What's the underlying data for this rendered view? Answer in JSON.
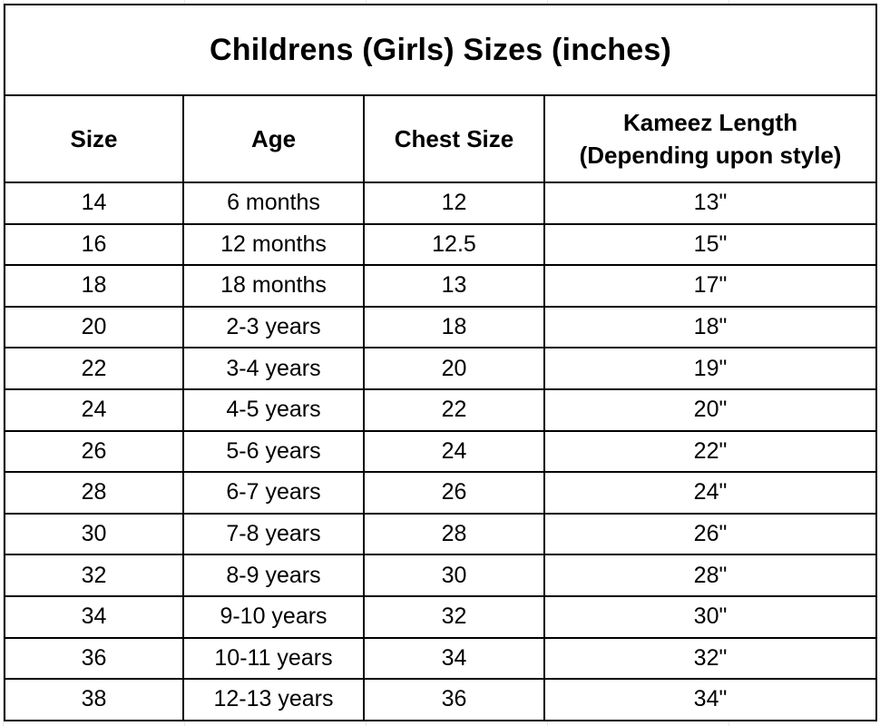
{
  "title": "Childrens (Girls) Sizes (inches)",
  "headers": {
    "size": "Size",
    "age": "Age",
    "chest": "Chest Size",
    "length_line1": "Kameez Length",
    "length_line2": "(Depending upon style)"
  },
  "rows": [
    {
      "size": "14",
      "age": "6 months",
      "chest": "12",
      "length": "13\""
    },
    {
      "size": "16",
      "age": "12 months",
      "chest": "12.5",
      "length": "15\""
    },
    {
      "size": "18",
      "age": "18 months",
      "chest": "13",
      "length": "17\""
    },
    {
      "size": "20",
      "age": "2-3 years",
      "chest": "18",
      "length": "18\""
    },
    {
      "size": "22",
      "age": "3-4 years",
      "chest": "20",
      "length": "19\""
    },
    {
      "size": "24",
      "age": "4-5 years",
      "chest": "22",
      "length": "20\""
    },
    {
      "size": "26",
      "age": "5-6 years",
      "chest": "24",
      "length": "22\""
    },
    {
      "size": "28",
      "age": "6-7 years",
      "chest": "26",
      "length": "24\""
    },
    {
      "size": "30",
      "age": "7-8 years",
      "chest": "28",
      "length": "26\""
    },
    {
      "size": "32",
      "age": "8-9 years",
      "chest": "30",
      "length": "28\""
    },
    {
      "size": "34",
      "age": "9-10 years",
      "chest": "32",
      "length": "30\""
    },
    {
      "size": "36",
      "age": "10-11 years",
      "chest": "34",
      "length": "32\""
    },
    {
      "size": "38",
      "age": "12-13 years",
      "chest": "36",
      "length": "34\""
    }
  ]
}
